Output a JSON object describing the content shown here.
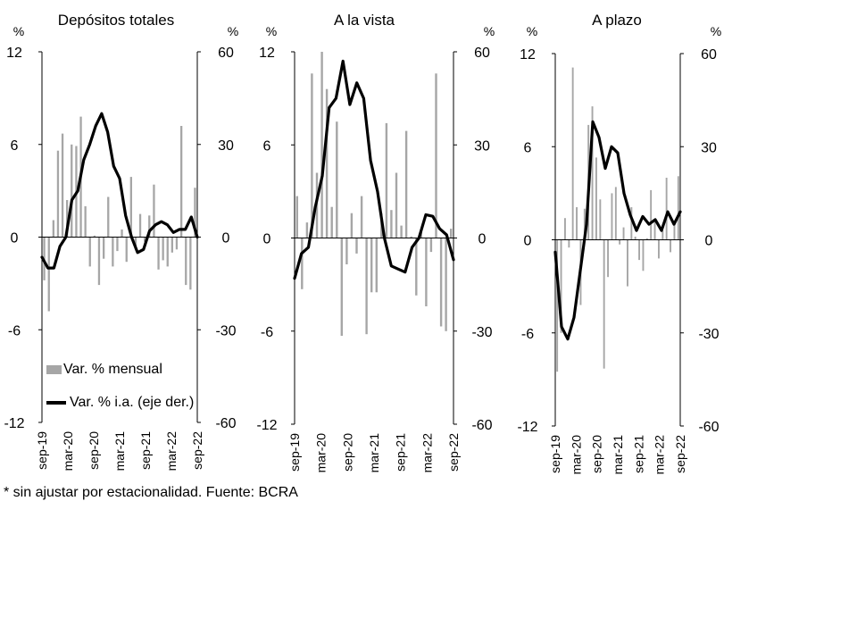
{
  "panels": [
    {
      "title": "Depósitos totales",
      "left_unit": "%",
      "right_unit": "%",
      "chart_data": {
        "type": "bar+line",
        "x_tick_labels": [
          "sep-19",
          "mar-20",
          "sep-20",
          "mar-21",
          "sep-21",
          "mar-22",
          "sep-22"
        ],
        "x_start": "2019-09",
        "x_end": "2022-09",
        "left_axis": {
          "ylim": [
            -12,
            12
          ],
          "ticks": [
            "12",
            "6",
            "0",
            "-6",
            "-12"
          ]
        },
        "right_axis": {
          "ylim": [
            -60,
            60
          ],
          "ticks": [
            "60",
            "30",
            "0",
            "-30",
            "-60"
          ]
        },
        "series": [
          {
            "name": "Var. % mensual",
            "kind": "bar",
            "axis": "left",
            "values": [
              -2.8,
              -4.8,
              1.1,
              5.6,
              6.7,
              2.4,
              6.0,
              5.9,
              7.8,
              2.0,
              -1.9,
              0.1,
              -3.1,
              -1.4,
              2.6,
              -1.9,
              -0.9,
              0.5,
              -1.6,
              3.9,
              -0.8,
              1.5,
              -0.3,
              1.4,
              3.4,
              -2.1,
              -1.5,
              -1.9,
              -1.0,
              -0.8,
              7.2,
              -3.1,
              -3.4,
              3.2
            ]
          },
          {
            "name": "Var. % i.a. (eje der.)",
            "kind": "line",
            "axis": "right",
            "values": [
              -6.5,
              -10.0,
              -10.0,
              -3.0,
              0.0,
              12.0,
              15.0,
              25.0,
              30.0,
              36.0,
              40.0,
              34.0,
              23.0,
              19.0,
              7.0,
              0.0,
              -5.0,
              -4.0,
              2.0,
              4.0,
              5.0,
              4.0,
              1.5,
              2.5,
              2.5,
              6.5,
              0.0
            ]
          }
        ]
      }
    },
    {
      "title": "A la vista",
      "left_unit": "%",
      "right_unit": "%",
      "chart_data": {
        "type": "bar+line",
        "x_tick_labels": [
          "sep-19",
          "mar-20",
          "sep-20",
          "mar-21",
          "sep-21",
          "mar-22",
          "sep-22"
        ],
        "x_start": "2019-09",
        "x_end": "2022-09",
        "left_axis": {
          "ylim": [
            -12,
            12
          ],
          "ticks": [
            "12",
            "6",
            "0",
            "-6",
            "-12"
          ]
        },
        "right_axis": {
          "ylim": [
            -60,
            60
          ],
          "ticks": [
            "60",
            "30",
            "0",
            "-30",
            "-60"
          ]
        },
        "series": [
          {
            "name": "Var. % mensual",
            "kind": "bar",
            "axis": "left",
            "values": [
              2.7,
              -3.3,
              1.0,
              10.6,
              4.2,
              12.0,
              9.6,
              2.0,
              7.5,
              -6.3,
              -1.7,
              1.6,
              -1.0,
              2.7,
              -6.2,
              -3.5,
              -3.5,
              1.6,
              7.4,
              1.8,
              4.2,
              0.8,
              6.9,
              0.1,
              -3.7,
              0.5,
              -4.4,
              -0.9,
              10.6,
              -5.7,
              -6.0,
              0.6
            ]
          },
          {
            "name": "Var. % i.a. (eje der.)",
            "kind": "line",
            "axis": "right",
            "values": [
              -13.0,
              -5.0,
              -3.0,
              10.0,
              20.0,
              42.0,
              45.0,
              57.0,
              43.0,
              50.0,
              45.0,
              25.0,
              15.0,
              0.0,
              -9.0,
              -10.0,
              -11.0,
              -3.0,
              0.0,
              7.5,
              7.0,
              3.0,
              1.0,
              -7.0
            ]
          }
        ]
      }
    },
    {
      "title": "A plazo",
      "left_unit": "%",
      "right_unit": "%",
      "chart_data": {
        "type": "bar+line",
        "x_tick_labels": [
          "sep-19",
          "mar-20",
          "sep-20",
          "mar-21",
          "sep-21",
          "mar-22",
          "sep-22"
        ],
        "x_start": "2019-09",
        "x_end": "2022-09",
        "left_axis": {
          "ylim": [
            -12,
            12
          ],
          "ticks": [
            "12",
            "6",
            "0",
            "-6",
            "-12"
          ]
        },
        "right_axis": {
          "ylim": [
            -60,
            60
          ],
          "ticks": [
            "60",
            "30",
            "0",
            "-30",
            "-60"
          ]
        },
        "series": [
          {
            "name": "Var. % mensual",
            "kind": "bar",
            "axis": "left",
            "values": [
              -8.5,
              -6.0,
              1.4,
              -0.5,
              11.1,
              2.1,
              -4.2,
              2.0,
              7.4,
              8.6,
              5.3,
              2.6,
              -8.3,
              -2.4,
              3.0,
              3.4,
              -0.3,
              0.8,
              -3.0,
              2.1,
              0.2,
              -1.3,
              -2.0,
              0.1,
              3.2,
              1.3,
              -1.2,
              0.6,
              4.0,
              -0.8,
              1.2,
              4.1
            ]
          },
          {
            "name": "Var. % i.a. (eje der.)",
            "kind": "line",
            "axis": "right",
            "values": [
              -4.0,
              -28.0,
              -32.0,
              -25.0,
              -10.0,
              5.0,
              38.0,
              33.0,
              23.0,
              30.0,
              28.0,
              15.0,
              8.0,
              3.0,
              7.5,
              5.0,
              6.5,
              3.0,
              9.0,
              5.0,
              9.0
            ]
          }
        ]
      }
    }
  ],
  "legend": {
    "bar_label": "Var. % mensual",
    "line_label": "Var. % i.a. (eje der.)",
    "bar_color": "#a6a6a6",
    "line_color": "#000000"
  },
  "footnote": "* sin ajustar por estacionalidad. Fuente: BCRA"
}
